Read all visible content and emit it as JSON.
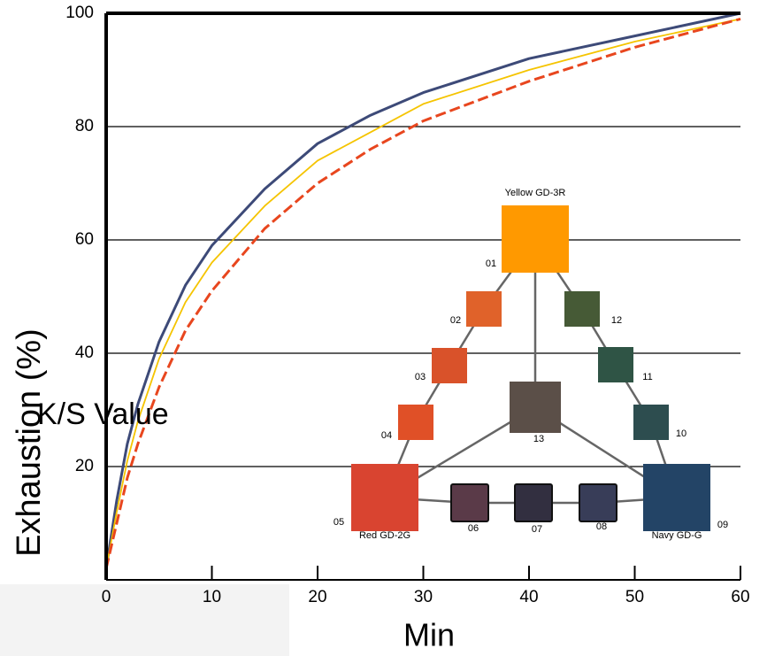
{
  "chart_data": {
    "type": "line",
    "y_label": "Exhaustion (%)",
    "x_label": "Min",
    "annotation": "K/S Value",
    "x": [
      0,
      1,
      2,
      3,
      5,
      7.5,
      10,
      15,
      20,
      25,
      30,
      40,
      50,
      60
    ],
    "series": [
      {
        "color": "#3d4a78",
        "dashed": false,
        "values": [
          2,
          14,
          24,
          31,
          42,
          52,
          59,
          69,
          77,
          82,
          86,
          92,
          96,
          100
        ]
      },
      {
        "color": "#f5c400",
        "dashed": false,
        "values": [
          2,
          12,
          21,
          28,
          39,
          49,
          56,
          66,
          74,
          79,
          84,
          90,
          95,
          99
        ]
      },
      {
        "color": "#e8461e",
        "dashed": true,
        "values": [
          2,
          10,
          18,
          24,
          34,
          44,
          51,
          62,
          70,
          76,
          81,
          88,
          94,
          99
        ]
      }
    ],
    "xlim": [
      0,
      60
    ],
    "ylim": [
      0,
      100
    ],
    "xticks": [
      0,
      10,
      20,
      30,
      40,
      50,
      60
    ],
    "yticks": [
      20,
      40,
      60,
      80,
      100
    ],
    "grid": true
  },
  "diagram": {
    "nodes": [
      {
        "label": "01",
        "name": "Yellow GD-3R",
        "color": "#ff9900"
      },
      {
        "label": "02",
        "color": "#e0622a"
      },
      {
        "label": "03",
        "color": "#d9522a"
      },
      {
        "label": "04",
        "color": "#e05027"
      },
      {
        "label": "05",
        "name": "Red  GD-2G",
        "color": "#d94430"
      },
      {
        "label": "06",
        "color": "#5a3a48"
      },
      {
        "label": "07",
        "color": "#322f40"
      },
      {
        "label": "08",
        "color": "#383d58"
      },
      {
        "label": "09",
        "name": "Navy GD-G",
        "color": "#234466"
      },
      {
        "label": "10",
        "color": "#2d4d4f"
      },
      {
        "label": "11",
        "color": "#2f5445"
      },
      {
        "label": "12",
        "color": "#465a36"
      },
      {
        "label": "13",
        "color": "#5b4f48"
      }
    ]
  }
}
